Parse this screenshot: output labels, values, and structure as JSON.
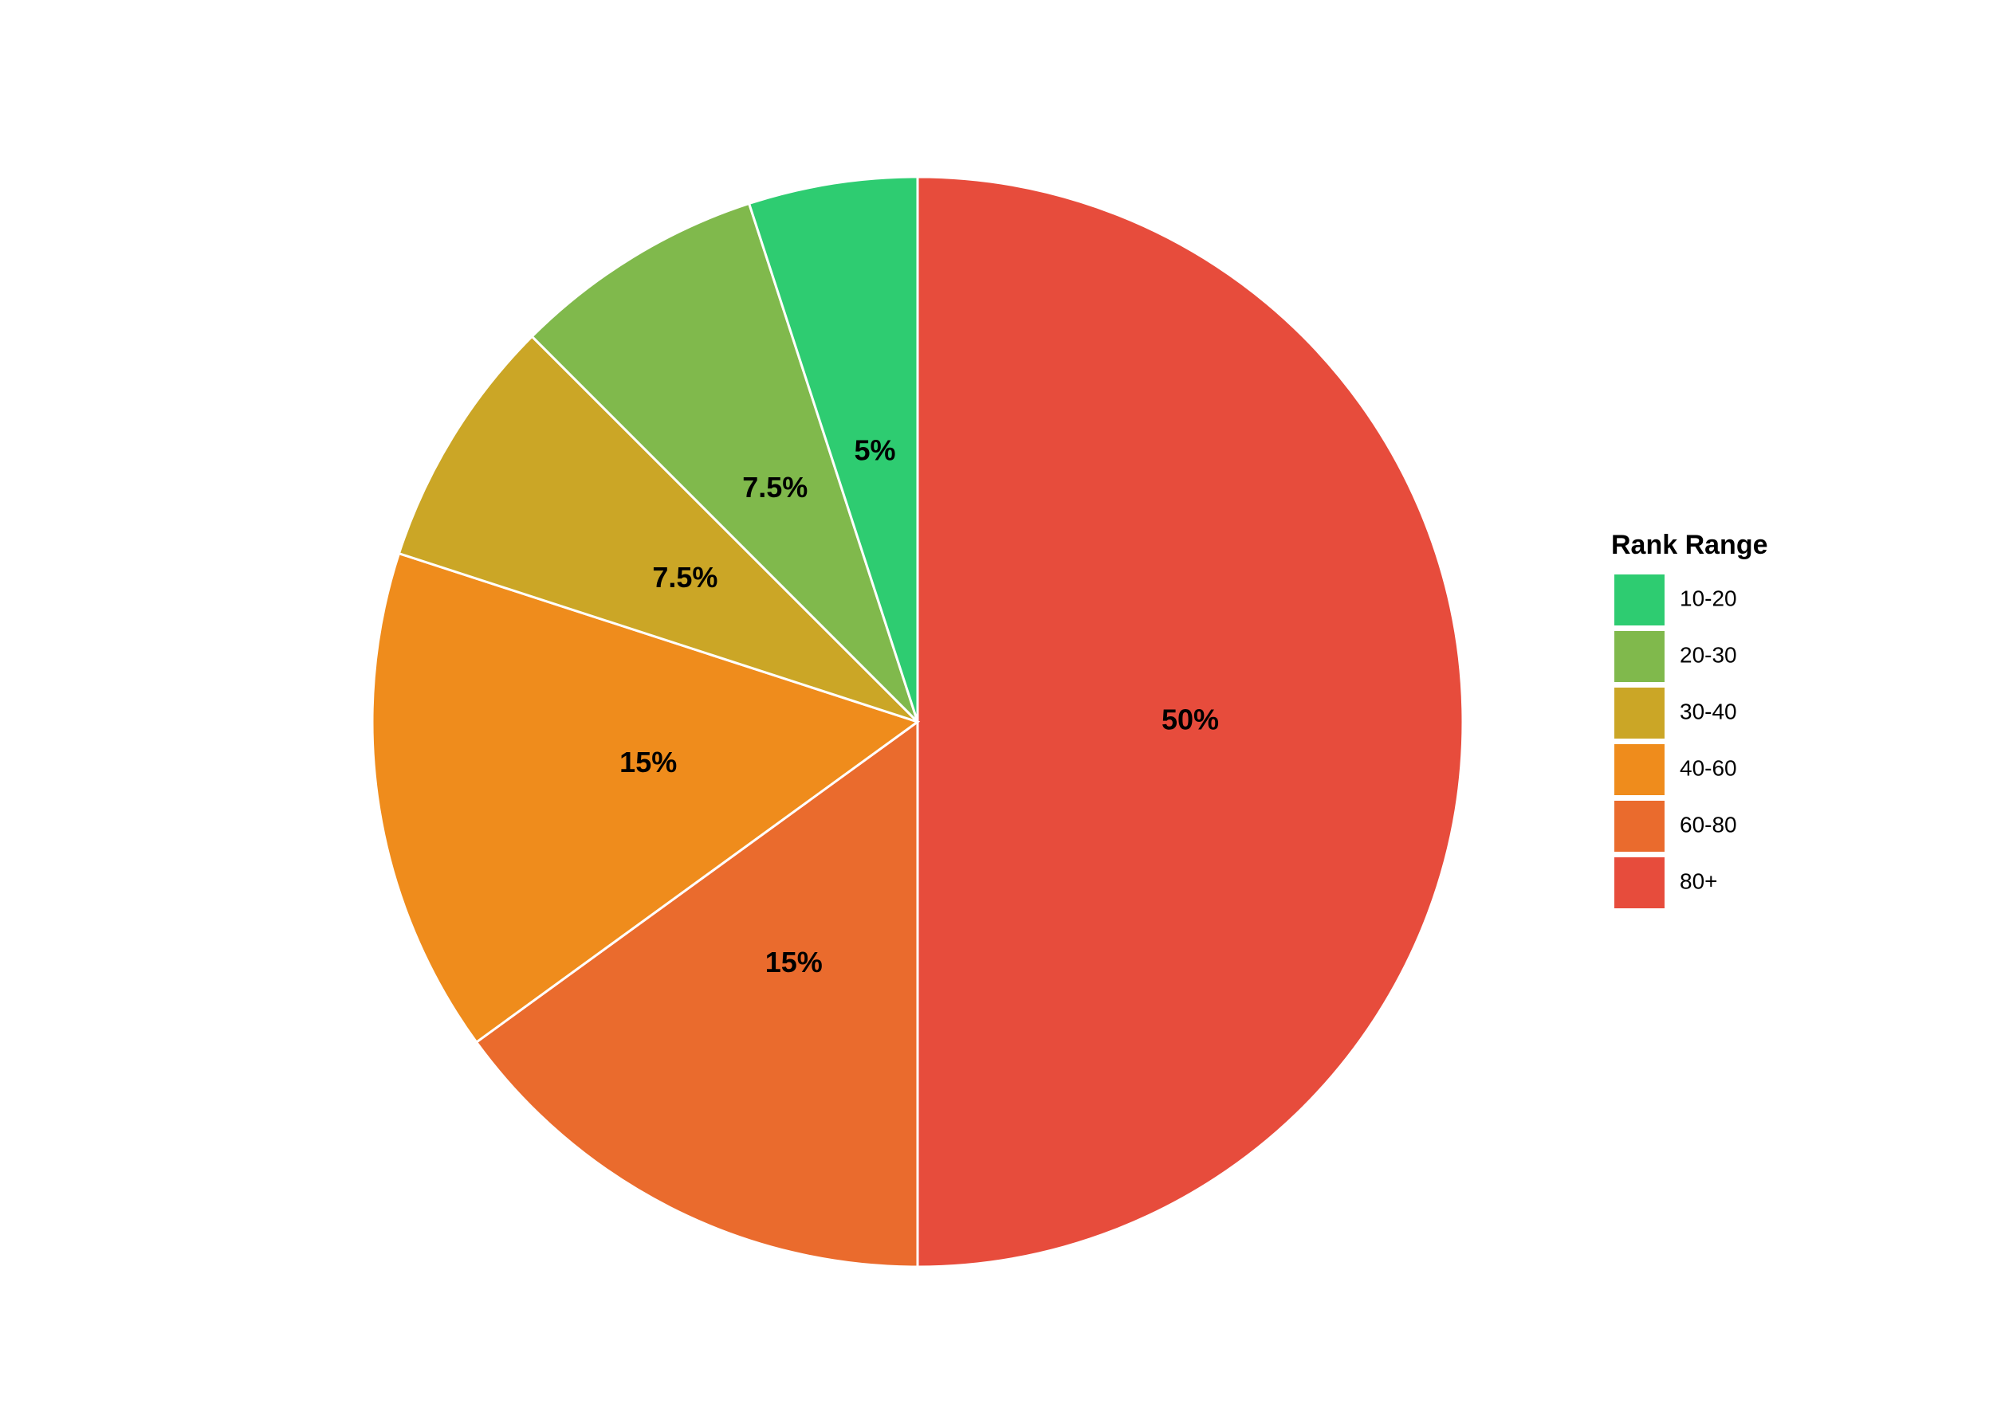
{
  "chart_data": {
    "type": "pie",
    "legend_title": "Rank Range",
    "legend": "right",
    "categories": [
      "10-20",
      "20-30",
      "30-40",
      "40-60",
      "60-80",
      "80+"
    ],
    "values": [
      5,
      7.5,
      7.5,
      15,
      15,
      50
    ],
    "value_labels": [
      "5%",
      "7.5%",
      "7.5%",
      "15%",
      "15%",
      "50%"
    ],
    "colors": [
      "#2ecc71",
      "#80b94c",
      "#cba626",
      "#ef8c1c",
      "#ea6b2d",
      "#e74c3c"
    ]
  }
}
